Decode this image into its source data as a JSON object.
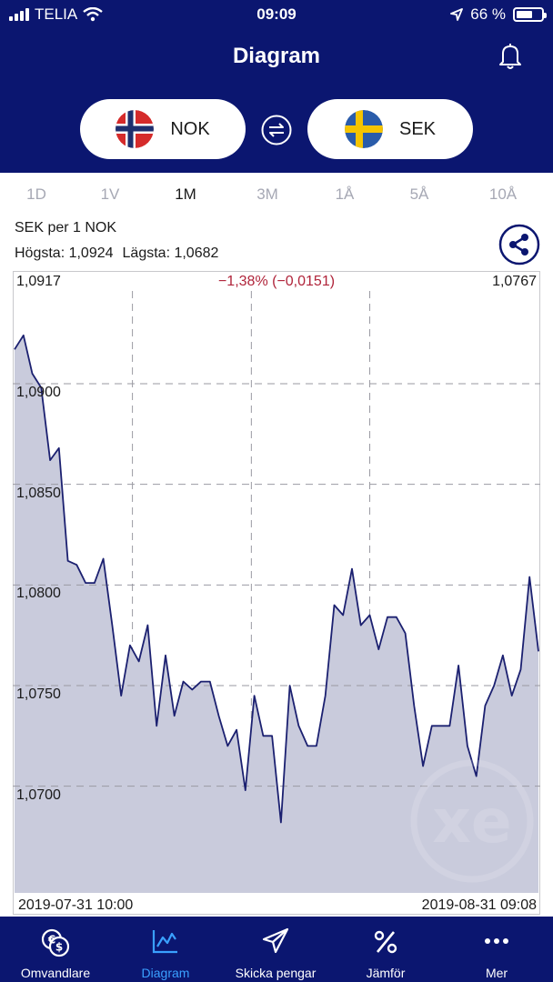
{
  "status_bar": {
    "carrier": "TELIA",
    "time": "09:09",
    "battery": "66 %",
    "battery_level": 0.66
  },
  "header": {
    "title": "Diagram"
  },
  "currencies": {
    "from": "NOK",
    "to": "SEK"
  },
  "ranges": [
    {
      "label": "1D",
      "active": false
    },
    {
      "label": "1V",
      "active": false
    },
    {
      "label": "1M",
      "active": true
    },
    {
      "label": "3M",
      "active": false
    },
    {
      "label": "1Å",
      "active": false
    },
    {
      "label": "5Å",
      "active": false
    },
    {
      "label": "10Å",
      "active": false
    }
  ],
  "info": {
    "pair": "SEK per 1 NOK",
    "high": "Högsta: 1,0924",
    "low": "Lägsta: 1,0682"
  },
  "chart_data": {
    "type": "area",
    "start_value_label": "1,0917",
    "end_value_label": "1,0767",
    "change_label": "−1,38% (−0,0151)",
    "x_start_label": "2019-07-31 10:00",
    "x_end_label": "2019-08-31 09:08",
    "y_ticks": [
      1.09,
      1.085,
      1.08,
      1.075,
      1.07
    ],
    "y_tick_labels": [
      "1,0900",
      "1,0850",
      "1,0800",
      "1,0750",
      "1,0700"
    ],
    "ylim": [
      1.0647,
      1.0956
    ],
    "grid": true,
    "series": [
      {
        "values": [
          1.0917,
          1.0924,
          1.0905,
          1.0898,
          1.0862,
          1.0868,
          1.0812,
          1.081,
          1.0801,
          1.0801,
          1.0813,
          1.078,
          1.0745,
          1.077,
          1.0762,
          1.078,
          1.073,
          1.0765,
          1.0735,
          1.0752,
          1.0748,
          1.0752,
          1.0752,
          1.0735,
          1.072,
          1.0728,
          1.0698,
          1.0745,
          1.0725,
          1.0725,
          1.0682,
          1.075,
          1.073,
          1.072,
          1.072,
          1.0745,
          1.079,
          1.0785,
          1.0808,
          1.078,
          1.0785,
          1.0768,
          1.0784,
          1.0784,
          1.0776,
          1.074,
          1.071,
          1.073,
          1.073,
          1.073,
          1.076,
          1.072,
          1.0705,
          1.074,
          1.075,
          1.0765,
          1.0745,
          1.0758,
          1.0804,
          1.0767
        ]
      }
    ]
  },
  "tabs": [
    {
      "label": "Omvandlare",
      "icon": "currency-convert-icon",
      "active": false
    },
    {
      "label": "Diagram",
      "icon": "chart-icon",
      "active": true
    },
    {
      "label": "Skicka pengar",
      "icon": "send-icon",
      "active": false
    },
    {
      "label": "Jämför",
      "icon": "percent-icon",
      "active": false
    },
    {
      "label": "Mer",
      "icon": "more-icon",
      "active": false
    }
  ],
  "colors": {
    "navy": "#0b1670",
    "line": "#1b2070",
    "fill": "#c9cbdc",
    "negative": "#b0243a",
    "active_tab": "#3aa0ff"
  }
}
